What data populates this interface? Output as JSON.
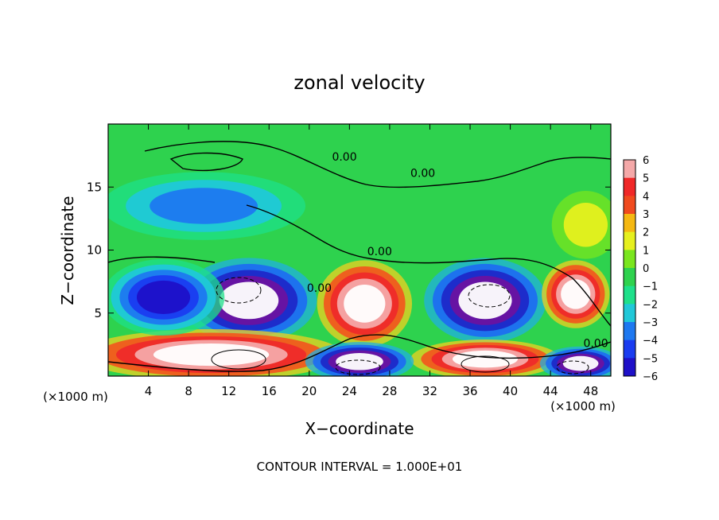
{
  "chart_data": {
    "type": "heatmap",
    "title": "zonal velocity",
    "xlabel": "X−coordinate",
    "ylabel": "Z−coordinate",
    "x_unit_left": "(×1000 m)",
    "x_unit_right": "(×1000 m)",
    "footer": "CONTOUR INTERVAL = 1.000E+01",
    "xlim": [
      0,
      50
    ],
    "ylim": [
      0,
      20
    ],
    "x_ticks": [
      "4",
      "8",
      "12",
      "16",
      "20",
      "24",
      "28",
      "32",
      "36",
      "40",
      "44",
      "48"
    ],
    "y_ticks": [
      "5",
      "10",
      "15"
    ],
    "colorbar": {
      "range": [
        -6,
        6
      ],
      "ticks": [
        "6",
        "5",
        "4",
        "3",
        "2",
        "1",
        "0",
        "−1",
        "−2",
        "−3",
        "−4",
        "−5",
        "−6"
      ],
      "out_of_range_color": "#ffffff"
    },
    "contour_labels": [
      {
        "text": "0.00",
        "x": 23.5,
        "y": 17.1
      },
      {
        "text": "0.00",
        "x": 31.3,
        "y": 15.8
      },
      {
        "text": "0.00",
        "x": 27.0,
        "y": 9.6
      },
      {
        "text": "0.00",
        "x": 21.0,
        "y": 6.7
      },
      {
        "text": "0.00",
        "x": 48.5,
        "y": 2.3
      }
    ],
    "features": [
      {
        "sign": "negative",
        "x": [
          9,
          19
        ],
        "z": [
          3.5,
          8.5
        ],
        "peak": -10
      },
      {
        "sign": "positive",
        "x": [
          22,
          29
        ],
        "z": [
          3.2,
          8.3
        ],
        "peak": 10
      },
      {
        "sign": "negative",
        "x": [
          33,
          42
        ],
        "z": [
          3.5,
          8.5
        ],
        "peak": -10
      },
      {
        "sign": "positive",
        "x": [
          44,
          49
        ],
        "z": [
          4.5,
          8.5
        ],
        "peak": 10
      },
      {
        "sign": "positive",
        "x": [
          0.5,
          20
        ],
        "z": [
          0.2,
          3.2
        ],
        "peak": 10
      },
      {
        "sign": "positive",
        "x": [
          32,
          43
        ],
        "z": [
          0.2,
          2.5
        ],
        "peak": 10
      },
      {
        "sign": "negative",
        "x": [
          21,
          29
        ],
        "z": [
          0,
          2.3
        ],
        "peak": -10
      },
      {
        "sign": "negative",
        "x": [
          44,
          50
        ],
        "z": [
          0,
          2.0
        ],
        "peak": -10
      },
      {
        "sign": "negative",
        "x": [
          1,
          10
        ],
        "z": [
          4,
          8.5
        ],
        "peak": -4.5
      },
      {
        "sign": "negative",
        "x": [
          2,
          17
        ],
        "z": [
          11.5,
          15.5
        ],
        "peak": -3
      },
      {
        "sign": "positive",
        "x": [
          45,
          50
        ],
        "z": [
          10,
          14
        ],
        "peak": 2
      }
    ]
  }
}
